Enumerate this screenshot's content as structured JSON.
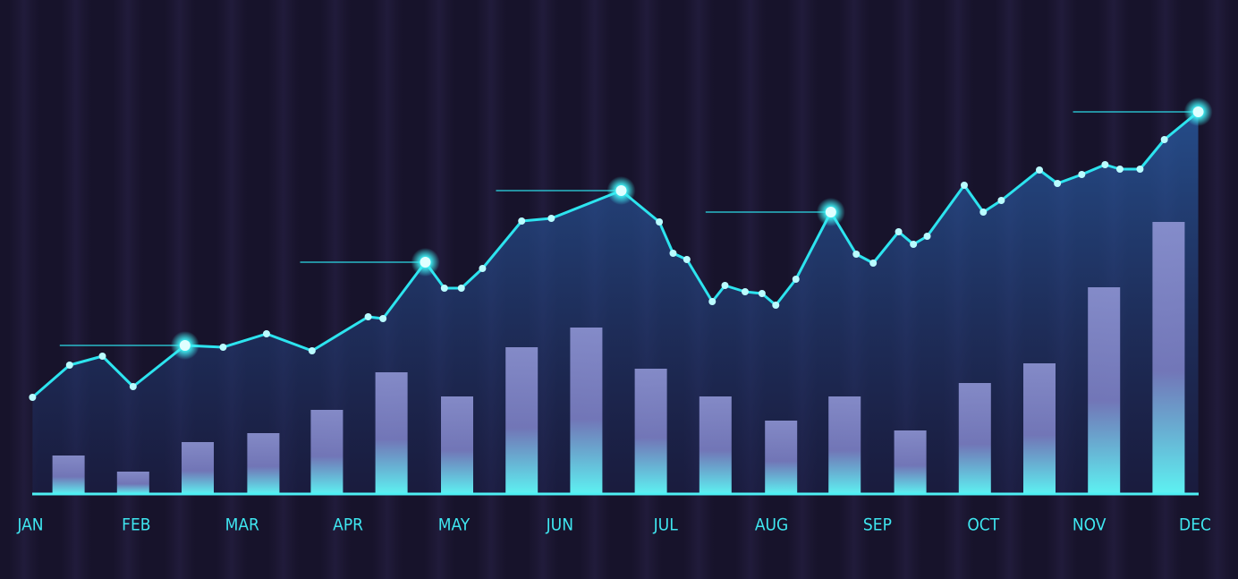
{
  "chart_data": {
    "type": "combo",
    "xlim": [
      0,
      11
    ],
    "ylim": [
      0,
      500
    ],
    "xticks": [
      {
        "value": 0,
        "label": "JAN"
      },
      {
        "value": 1,
        "label": "FEB"
      },
      {
        "value": 2,
        "label": "MAR"
      },
      {
        "value": 3,
        "label": "APR"
      },
      {
        "value": 4,
        "label": "MAY"
      },
      {
        "value": 5,
        "label": "JUN"
      },
      {
        "value": 6,
        "label": "JUL"
      },
      {
        "value": 7,
        "label": "AUG"
      },
      {
        "value": 8,
        "label": "SEP"
      },
      {
        "value": 9,
        "label": "OCT"
      },
      {
        "value": 10,
        "label": "NOV"
      },
      {
        "value": 11,
        "label": "DEC"
      }
    ],
    "series": [
      {
        "type": "bar",
        "color": "#7f84c6",
        "x": [
          0.36,
          0.97,
          1.58,
          2.2,
          2.8,
          3.41,
          4.03,
          4.64,
          5.25,
          5.86,
          6.47,
          7.09,
          7.69,
          8.31,
          8.92,
          9.53,
          10.14,
          10.75
        ],
        "values": [
          43,
          25,
          58,
          68,
          94,
          136,
          109,
          164,
          186,
          140,
          109,
          82,
          109,
          71,
          124,
          146,
          231,
          304
        ]
      },
      {
        "type": "line",
        "color": "#2de4ef",
        "x": [
          0.02,
          0.37,
          0.68,
          0.97,
          1.46,
          1.82,
          2.23,
          2.66,
          3.19,
          3.33,
          3.73,
          3.91,
          4.07,
          4.27,
          4.64,
          4.92,
          5.58,
          5.94,
          6.07,
          6.2,
          6.44,
          6.56,
          6.75,
          6.91,
          7.04,
          7.23,
          7.56,
          7.8,
          7.96,
          8.2,
          8.34,
          8.47,
          8.82,
          9.0,
          9.17,
          9.53,
          9.7,
          9.93,
          10.15,
          10.29,
          10.48,
          10.71,
          11.03
        ],
        "values": [
          108,
          144,
          154,
          120,
          166,
          164,
          179,
          160,
          198,
          196,
          259,
          230,
          230,
          252,
          305,
          308,
          339,
          304,
          269,
          262,
          215,
          233,
          226,
          224,
          211,
          240,
          315,
          268,
          258,
          293,
          279,
          288,
          345,
          315,
          328,
          362,
          347,
          357,
          368,
          363,
          363,
          396,
          427
        ]
      }
    ]
  }
}
